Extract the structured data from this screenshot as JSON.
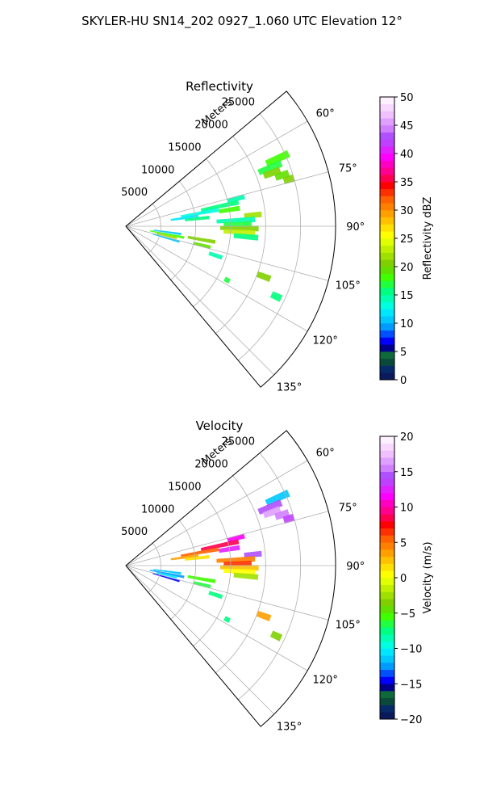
{
  "figure": {
    "title": "SKYLER-HU  SN14_202  0927_1.060 UTC Elevation 12°"
  },
  "chart_data": [
    {
      "type": "polar-sector",
      "title": "Reflectivity",
      "radial_label": "Meters",
      "radial_ticks": [
        {
          "value": 5000,
          "label": "5000"
        },
        {
          "value": 10000,
          "label": "10000"
        },
        {
          "value": 15000,
          "label": "15000"
        },
        {
          "value": 20000,
          "label": "20000"
        },
        {
          "value": 25000,
          "label": "25000"
        }
      ],
      "radial_max": 30000,
      "azimuth_range": [
        50,
        140
      ],
      "azimuth_ticks": [
        {
          "value": 60,
          "label": "60°"
        },
        {
          "value": 75,
          "label": "75°"
        },
        {
          "value": 90,
          "label": "90°"
        },
        {
          "value": 105,
          "label": "105°"
        },
        {
          "value": 120,
          "label": "120°"
        },
        {
          "value": 135,
          "label": "135°"
        }
      ],
      "grid": true,
      "colorbar": {
        "label": "Reflectivity dBZ",
        "range": [
          0,
          50
        ],
        "ticks": [
          {
            "value": 0,
            "label": "0"
          },
          {
            "value": 5,
            "label": "5"
          },
          {
            "value": 10,
            "label": "10"
          },
          {
            "value": 15,
            "label": "15"
          },
          {
            "value": 20,
            "label": "20"
          },
          {
            "value": 25,
            "label": "25"
          },
          {
            "value": 30,
            "label": "30"
          },
          {
            "value": 35,
            "label": "35"
          },
          {
            "value": 40,
            "label": "40"
          },
          {
            "value": 45,
            "label": "45"
          },
          {
            "value": 50,
            "label": "50"
          }
        ],
        "colors": [
          "#0a1a5c",
          "#062a6a",
          "#0b4a3a",
          "#0e6a3a",
          "#00008b",
          "#0000ff",
          "#0050ff",
          "#009bff",
          "#00c8ff",
          "#00e6ff",
          "#00ffe0",
          "#00ffb0",
          "#00ff80",
          "#20ff40",
          "#40ff00",
          "#60e000",
          "#80d000",
          "#a0e000",
          "#c0f000",
          "#e0ff00",
          "#ffff00",
          "#ffe000",
          "#ffc000",
          "#ffa000",
          "#ff8000",
          "#ff6000",
          "#ff3000",
          "#ff0000",
          "#ff0050",
          "#ff0090",
          "#ff00c0",
          "#ff00ff",
          "#e020ff",
          "#c040ff",
          "#b050ff",
          "#d080ff",
          "#e0a0ff",
          "#f0c0ff",
          "#f8d8ff",
          "#fff0ff"
        ]
      },
      "cells": [
        {
          "az": 66,
          "r1": 22000,
          "r2": 25500,
          "v": 18
        },
        {
          "az": 68,
          "r1": 20500,
          "r2": 24000,
          "v": 17
        },
        {
          "az": 70,
          "r1": 21000,
          "r2": 23500,
          "v": 21
        },
        {
          "az": 72,
          "r1": 22500,
          "r2": 24500,
          "v": 19
        },
        {
          "az": 74,
          "r1": 23500,
          "r2": 25000,
          "v": 20
        },
        {
          "az": 76,
          "r1": 15000,
          "r2": 17500,
          "v": 14
        },
        {
          "az": 78,
          "r1": 11000,
          "r2": 16500,
          "v": 16
        },
        {
          "az": 80,
          "r1": 8000,
          "r2": 13500,
          "v": 13
        },
        {
          "az": 81,
          "r1": 13500,
          "r2": 16500,
          "v": 18
        },
        {
          "az": 82,
          "r1": 6500,
          "r2": 10500,
          "v": 12
        },
        {
          "az": 84,
          "r1": 8500,
          "r2": 12000,
          "v": 15
        },
        {
          "az": 85,
          "r1": 17000,
          "r2": 19500,
          "v": 22
        },
        {
          "az": 87,
          "r1": 13000,
          "r2": 18500,
          "v": 14
        },
        {
          "az": 89,
          "r1": 14000,
          "r2": 18000,
          "v": 17
        },
        {
          "az": 91,
          "r1": 13500,
          "r2": 19000,
          "v": 20
        },
        {
          "az": 93,
          "r1": 14000,
          "r2": 18500,
          "v": 23
        },
        {
          "az": 95,
          "r1": 15500,
          "r2": 19000,
          "v": 16
        },
        {
          "az": 98,
          "r1": 4000,
          "r2": 8000,
          "v": 11
        },
        {
          "az": 100,
          "r1": 9000,
          "r2": 13000,
          "v": 21
        },
        {
          "az": 101,
          "r1": 3500,
          "r2": 8500,
          "v": 18
        },
        {
          "az": 103,
          "r1": 4500,
          "r2": 7500,
          "v": 22
        },
        {
          "az": 104,
          "r1": 10000,
          "r2": 12500,
          "v": 19
        },
        {
          "az": 106,
          "r1": 4000,
          "r2": 8000,
          "v": 10
        },
        {
          "az": 108,
          "r1": 12500,
          "r2": 14500,
          "v": 14
        },
        {
          "az": 110,
          "r1": 20000,
          "r2": 22000,
          "v": 20
        },
        {
          "az": 115,
          "r1": 23000,
          "r2": 24500,
          "v": 16
        },
        {
          "az": 118,
          "r1": 16000,
          "r2": 16800,
          "v": 17
        }
      ]
    },
    {
      "type": "polar-sector",
      "title": "Velocity",
      "radial_label": "Meters",
      "radial_ticks": [
        {
          "value": 5000,
          "label": "5000"
        },
        {
          "value": 10000,
          "label": "10000"
        },
        {
          "value": 15000,
          "label": "15000"
        },
        {
          "value": 20000,
          "label": "20000"
        },
        {
          "value": 25000,
          "label": "25000"
        }
      ],
      "radial_max": 30000,
      "azimuth_range": [
        50,
        140
      ],
      "azimuth_ticks": [
        {
          "value": 60,
          "label": "60°"
        },
        {
          "value": 75,
          "label": "75°"
        },
        {
          "value": 90,
          "label": "90°"
        },
        {
          "value": 105,
          "label": "105°"
        },
        {
          "value": 120,
          "label": "120°"
        },
        {
          "value": 135,
          "label": "135°"
        }
      ],
      "grid": true,
      "colorbar": {
        "label": "Velocity (m/s)",
        "range": [
          -20,
          20
        ],
        "ticks": [
          {
            "value": -20,
            "label": "−20"
          },
          {
            "value": -15,
            "label": "−15"
          },
          {
            "value": -10,
            "label": "−10"
          },
          {
            "value": -5,
            "label": "−5"
          },
          {
            "value": 0,
            "label": "0"
          },
          {
            "value": 5,
            "label": "5"
          },
          {
            "value": 10,
            "label": "10"
          },
          {
            "value": 15,
            "label": "15"
          },
          {
            "value": 20,
            "label": "20"
          }
        ],
        "colors": [
          "#0a1a5c",
          "#062a6a",
          "#0b4a3a",
          "#0e6a3a",
          "#00008b",
          "#0000ff",
          "#0050ff",
          "#009bff",
          "#00c8ff",
          "#00e6ff",
          "#00ffe0",
          "#00ffb0",
          "#00ff80",
          "#20ff40",
          "#40ff00",
          "#60e000",
          "#80d000",
          "#a0e000",
          "#c0f000",
          "#e0ff00",
          "#ffff00",
          "#ffe000",
          "#ffc000",
          "#ffa000",
          "#ff8000",
          "#ff6000",
          "#ff3000",
          "#ff0000",
          "#ff0050",
          "#ff0090",
          "#ff00c0",
          "#ff00ff",
          "#e020ff",
          "#c040ff",
          "#b050ff",
          "#d080ff",
          "#e0a0ff",
          "#f0c0ff",
          "#f8d8ff",
          "#fff0ff"
        ]
      },
      "cells": [
        {
          "az": 66,
          "r1": 22000,
          "r2": 25500,
          "v": -12
        },
        {
          "az": 68,
          "r1": 20500,
          "r2": 24000,
          "v": 14
        },
        {
          "az": 70,
          "r1": 21000,
          "r2": 23500,
          "v": 16
        },
        {
          "az": 72,
          "r1": 22500,
          "r2": 24500,
          "v": 15
        },
        {
          "az": 74,
          "r1": 23500,
          "r2": 25000,
          "v": 13
        },
        {
          "az": 76,
          "r1": 15000,
          "r2": 17500,
          "v": 11
        },
        {
          "az": 78,
          "r1": 11000,
          "r2": 16500,
          "v": 8
        },
        {
          "az": 80,
          "r1": 8000,
          "r2": 13500,
          "v": 5
        },
        {
          "az": 81,
          "r1": 13500,
          "r2": 16500,
          "v": 12
        },
        {
          "az": 82,
          "r1": 6500,
          "r2": 10500,
          "v": 3
        },
        {
          "az": 84,
          "r1": 8500,
          "r2": 12000,
          "v": 1
        },
        {
          "az": 85,
          "r1": 17000,
          "r2": 19500,
          "v": 14
        },
        {
          "az": 87,
          "r1": 13000,
          "r2": 18500,
          "v": 4
        },
        {
          "az": 89,
          "r1": 14000,
          "r2": 18000,
          "v": 6
        },
        {
          "az": 91,
          "r1": 13500,
          "r2": 19000,
          "v": 2
        },
        {
          "az": 93,
          "r1": 14000,
          "r2": 18500,
          "v": 0
        },
        {
          "az": 95,
          "r1": 15500,
          "r2": 19000,
          "v": -3
        },
        {
          "az": 98,
          "r1": 4000,
          "r2": 8000,
          "v": -12
        },
        {
          "az": 100,
          "r1": 9000,
          "r2": 13000,
          "v": -6
        },
        {
          "az": 101,
          "r1": 3500,
          "r2": 8500,
          "v": -13
        },
        {
          "az": 103,
          "r1": 4500,
          "r2": 7500,
          "v": -11
        },
        {
          "az": 104,
          "r1": 10000,
          "r2": 12500,
          "v": -7
        },
        {
          "az": 106,
          "r1": 4000,
          "r2": 8000,
          "v": -15
        },
        {
          "az": 108,
          "r1": 12500,
          "r2": 14500,
          "v": -8
        },
        {
          "az": 110,
          "r1": 20000,
          "r2": 22000,
          "v": 3
        },
        {
          "az": 115,
          "r1": 23000,
          "r2": 24500,
          "v": -4
        },
        {
          "az": 118,
          "r1": 16000,
          "r2": 16800,
          "v": -8
        }
      ]
    }
  ]
}
